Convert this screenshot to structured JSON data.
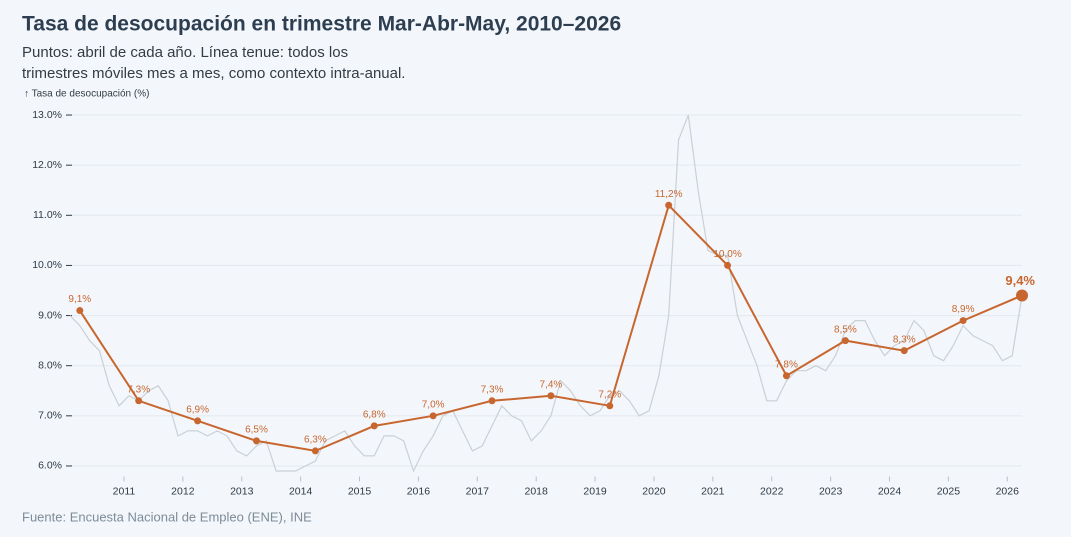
{
  "chart_data": {
    "type": "line",
    "title": "Tasa de desocupación en trimestre Mar-Abr-May, 2010–2026",
    "subtitle": [
      "Puntos: abril de cada año. Línea tenue: todos los",
      "trimestres móviles mes a mes, como contexto intra-anual."
    ],
    "y_label": "↑ Tasa de desocupación (%)",
    "source": "Fuente: Encuesta Nacional de Empleo (ENE), INE",
    "x": [
      "2010-04",
      "2011-04",
      "2012-04",
      "2013-04",
      "2014-04",
      "2015-04",
      "2016-04",
      "2017-04",
      "2018-04",
      "2019-04",
      "2020-04",
      "2021-04",
      "2022-04",
      "2023-04",
      "2024-04",
      "2025-04",
      "2026-04"
    ],
    "xlim": [
      "2010-02",
      "2026-04"
    ],
    "xticks": [
      {
        "value": "2011-01",
        "label": "2011"
      },
      {
        "value": "2012-01",
        "label": "2012"
      },
      {
        "value": "2013-01",
        "label": "2013"
      },
      {
        "value": "2014-01",
        "label": "2014"
      },
      {
        "value": "2015-01",
        "label": "2015"
      },
      {
        "value": "2016-01",
        "label": "2016"
      },
      {
        "value": "2017-01",
        "label": "2017"
      },
      {
        "value": "2018-01",
        "label": "2018"
      },
      {
        "value": "2019-01",
        "label": "2019"
      },
      {
        "value": "2020-01",
        "label": "2020"
      },
      {
        "value": "2021-01",
        "label": "2021"
      },
      {
        "value": "2022-01",
        "label": "2022"
      },
      {
        "value": "2023-01",
        "label": "2023"
      },
      {
        "value": "2024-01",
        "label": "2024"
      },
      {
        "value": "2025-01",
        "label": "2025"
      },
      {
        "value": "2026-01",
        "label": "2026"
      }
    ],
    "ylim": [
      5.75,
      13.2
    ],
    "yticks": [
      {
        "value": 6,
        "label": "6.0%"
      },
      {
        "value": 7,
        "label": "7.0%"
      },
      {
        "value": 8,
        "label": "8.0%"
      },
      {
        "value": 9,
        "label": "9.0%"
      },
      {
        "value": 10,
        "label": "10.0%"
      },
      {
        "value": 11,
        "label": "11.0%"
      },
      {
        "value": 12,
        "label": "12.0%"
      },
      {
        "value": 13,
        "label": "13.0%"
      }
    ],
    "grid": true,
    "series": [
      {
        "color": "#c8662f",
        "values": [
          9.1,
          7.3,
          6.9,
          6.5,
          6.3,
          6.8,
          7.0,
          7.3,
          7.4,
          7.2,
          11.2,
          10.0,
          7.8,
          8.5,
          8.3,
          8.9,
          9.4
        ],
        "value_labels": [
          "9,1%",
          "7,3%",
          "6,9%",
          "6,5%",
          "6,3%",
          "6,8%",
          "7,0%",
          "7,3%",
          "7,4%",
          "7,2%",
          "11,2%",
          "10,0%",
          "7,8%",
          "8,5%",
          "8,3%",
          "8,9%",
          "9,4%"
        ]
      },
      {
        "color": "#c9d0d6",
        "x": [
          "2010-02",
          "2010-04",
          "2010-06",
          "2010-08",
          "2010-10",
          "2010-12",
          "2011-02",
          "2011-04",
          "2011-06",
          "2011-08",
          "2011-10",
          "2011-12",
          "2012-02",
          "2012-04",
          "2012-06",
          "2012-08",
          "2012-10",
          "2012-12",
          "2013-02",
          "2013-04",
          "2013-06",
          "2013-08",
          "2013-10",
          "2013-12",
          "2014-02",
          "2014-04",
          "2014-06",
          "2014-08",
          "2014-10",
          "2014-12",
          "2015-02",
          "2015-04",
          "2015-06",
          "2015-08",
          "2015-10",
          "2015-12",
          "2016-02",
          "2016-04",
          "2016-06",
          "2016-08",
          "2016-10",
          "2016-12",
          "2017-02",
          "2017-04",
          "2017-06",
          "2017-08",
          "2017-10",
          "2017-12",
          "2018-02",
          "2018-04",
          "2018-06",
          "2018-08",
          "2018-10",
          "2018-12",
          "2019-02",
          "2019-04",
          "2019-06",
          "2019-08",
          "2019-10",
          "2019-12",
          "2020-02",
          "2020-04",
          "2020-06",
          "2020-08",
          "2020-10",
          "2020-12",
          "2021-02",
          "2021-04",
          "2021-06",
          "2021-08",
          "2021-10",
          "2021-12",
          "2022-02",
          "2022-04",
          "2022-06",
          "2022-08",
          "2022-10",
          "2022-12",
          "2023-02",
          "2023-04",
          "2023-06",
          "2023-08",
          "2023-10",
          "2023-12",
          "2024-02",
          "2024-04",
          "2024-06",
          "2024-08",
          "2024-10",
          "2024-12",
          "2025-02",
          "2025-04",
          "2025-06",
          "2025-08",
          "2025-10",
          "2025-12",
          "2026-02",
          "2026-04"
        ],
        "values": [
          9.0,
          8.8,
          8.5,
          8.3,
          7.6,
          7.2,
          7.4,
          7.3,
          7.5,
          7.6,
          7.3,
          6.6,
          6.7,
          6.7,
          6.6,
          6.7,
          6.6,
          6.3,
          6.2,
          6.4,
          6.5,
          5.9,
          5.9,
          5.9,
          6.0,
          6.1,
          6.5,
          6.6,
          6.7,
          6.4,
          6.2,
          6.2,
          6.6,
          6.6,
          6.5,
          5.9,
          6.3,
          6.6,
          7.0,
          7.1,
          6.7,
          6.3,
          6.4,
          6.8,
          7.2,
          7.0,
          6.9,
          6.5,
          6.7,
          7.0,
          7.7,
          7.5,
          7.2,
          7.0,
          7.1,
          7.4,
          7.5,
          7.3,
          7.0,
          7.1,
          7.8,
          9.0,
          12.5,
          13.0,
          11.5,
          10.3,
          10.2,
          10.2,
          9.0,
          8.5,
          8.0,
          7.3,
          7.3,
          7.7,
          7.9,
          7.9,
          8.0,
          7.9,
          8.2,
          8.7,
          8.9,
          8.9,
          8.5,
          8.2,
          8.4,
          8.5,
          8.9,
          8.7,
          8.2,
          8.1,
          8.4,
          8.8,
          8.6,
          8.5,
          8.4,
          8.1,
          8.2,
          9.4
        ]
      }
    ]
  }
}
